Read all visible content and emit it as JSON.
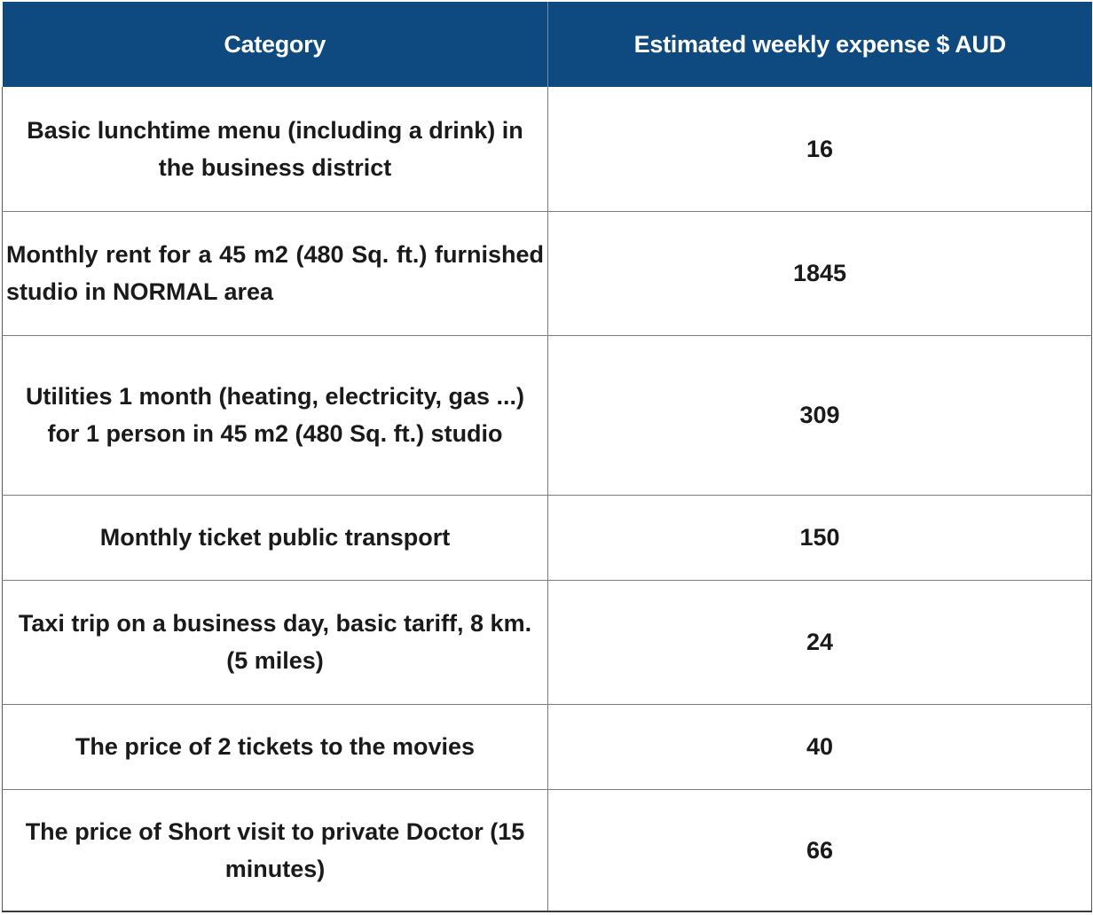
{
  "table": {
    "headers": [
      "Category",
      "Estimated weekly expense $ AUD"
    ],
    "rows": [
      {
        "category": "Basic lunchtime menu (including a drink) in the business district",
        "value": "16"
      },
      {
        "category": "Monthly rent for a 45 m2 (480 Sq. ft.) furnished studio in NORMAL area",
        "value": "1845"
      },
      {
        "category": "Utilities 1 month (heating, electricity, gas ...) for 1 person in 45 m2 (480 Sq. ft.) studio",
        "value": "309"
      },
      {
        "category": "Monthly ticket public transport",
        "value": "150"
      },
      {
        "category": "Taxi trip on a business day, basic tariff, 8 km. (5 miles)",
        "value": "24"
      },
      {
        "category": "The price of 2 tickets to the movies",
        "value": "40"
      },
      {
        "category": "The price of Short visit to private Doctor (15 minutes)",
        "value": "66"
      }
    ]
  },
  "colors": {
    "header_background": "#0e4a80",
    "header_text": "#ffffff",
    "body_text": "#1a1a1a",
    "grid_lines": "#7d7d7d"
  }
}
